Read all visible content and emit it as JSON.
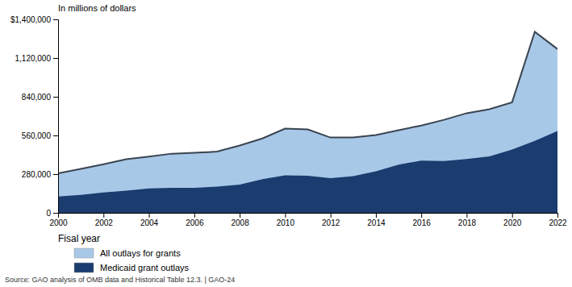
{
  "chart_data": {
    "type": "area",
    "y_label": "In millions of dollars",
    "x_label": "Fisal year",
    "source": "Source: GAO analysis of OMB data and Historical Table 12.3.  |  GAO-24",
    "x": [
      2000,
      2001,
      2002,
      2003,
      2004,
      2005,
      2006,
      2007,
      2008,
      2009,
      2010,
      2011,
      2012,
      2013,
      2014,
      2015,
      2016,
      2017,
      2018,
      2019,
      2020,
      2021,
      2022
    ],
    "series": [
      {
        "name": "All outlays for grants",
        "color": "#a8c8e8",
        "values": [
          285000,
          318000,
          352000,
          388000,
          407000,
          428000,
          434000,
          443000,
          487000,
          538000,
          609000,
          604000,
          545000,
          546000,
          563000,
          598000,
          632000,
          673000,
          721000,
          750000,
          800000,
          1310000,
          1185000
        ]
      },
      {
        "name": "Medicaid grant outlays",
        "color": "#1a3c6e",
        "values": [
          118000,
          130000,
          148000,
          161000,
          176000,
          181000,
          181000,
          190000,
          204000,
          244000,
          271000,
          269000,
          251000,
          265000,
          301000,
          349000,
          378000,
          375000,
          389000,
          409000,
          458000,
          521000,
          592000
        ]
      }
    ],
    "xlim": [
      2000,
      2022
    ],
    "xticks": [
      2000,
      2002,
      2004,
      2006,
      2008,
      2010,
      2012,
      2014,
      2016,
      2018,
      2020,
      2022
    ],
    "ylim": [
      0,
      1400000
    ],
    "yticks": [
      0,
      {
        "value": 280000,
        "label": "280,000"
      },
      {
        "value": 560000,
        "label": "560,000"
      },
      {
        "value": 840000,
        "label": "840,000"
      },
      {
        "value": 1120000,
        "label": "1,120,000"
      },
      {
        "value": 1400000,
        "label": "$1,400,000"
      }
    ],
    "grid": false,
    "legend": "bottom"
  }
}
